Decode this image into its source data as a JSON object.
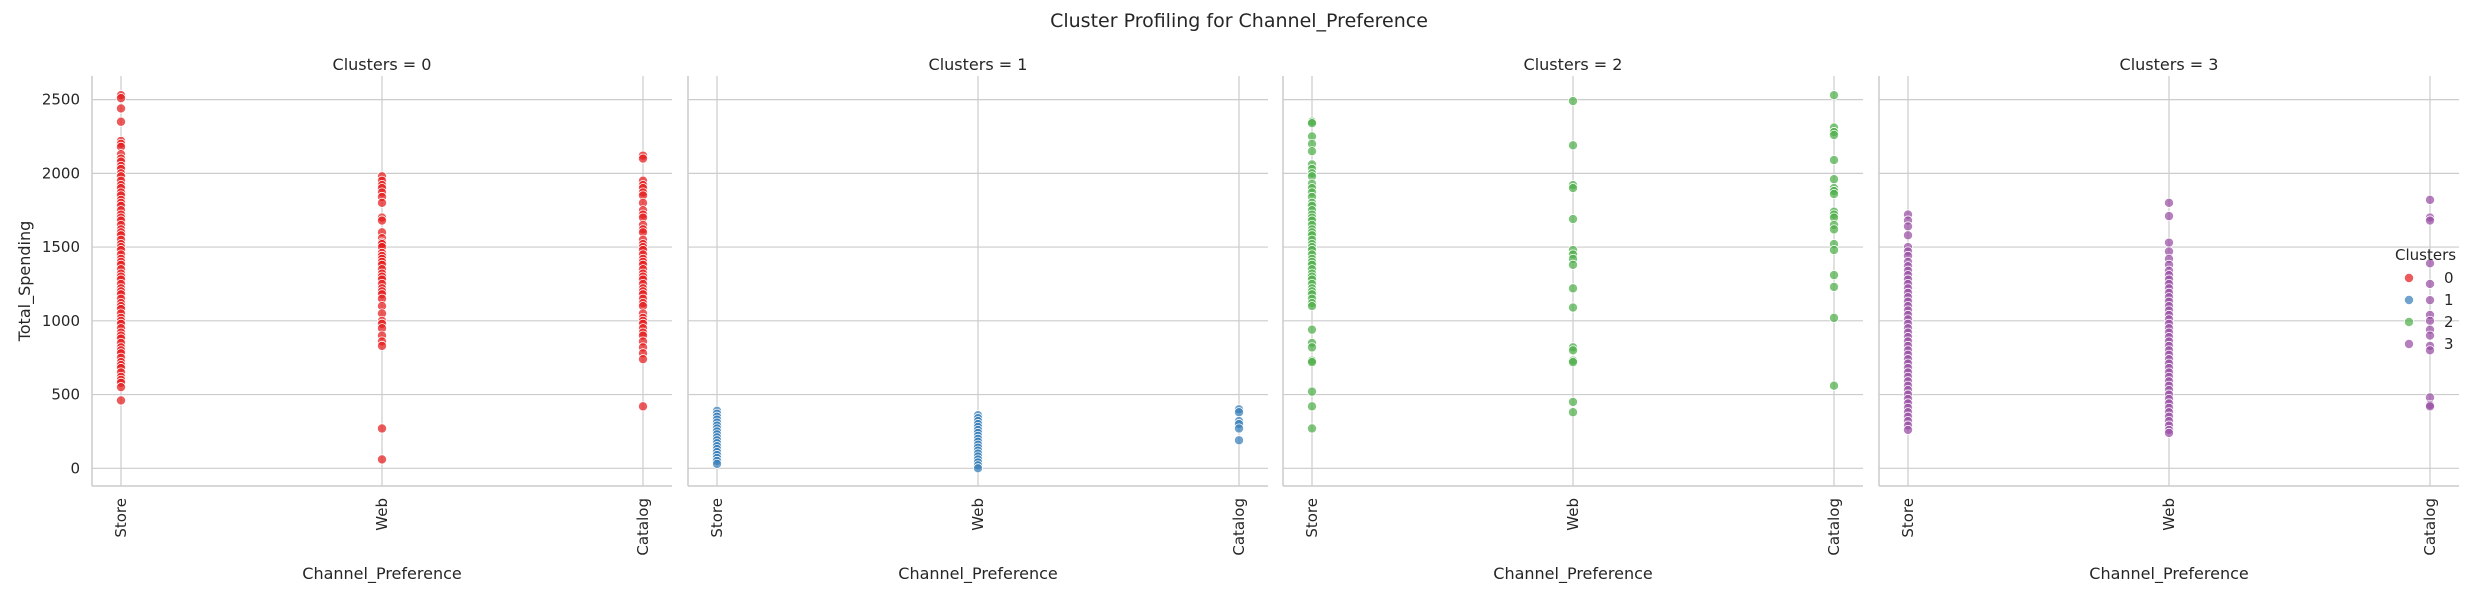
{
  "figure": {
    "title": "Cluster Profiling for Channel_Preference"
  },
  "legend": {
    "title": "Clusters",
    "placement": "right"
  },
  "colors": {
    "0": "#e41a1c",
    "1": "#377eb8",
    "2": "#4daf4a",
    "3": "#984ea3",
    "grid": "#cccccc",
    "spine": "#cccccc",
    "text": "#262626"
  },
  "chart_data": [
    {
      "type": "scatter",
      "title": "Clusters = 0",
      "cluster": "0",
      "xlabel": "Channel_Preference",
      "ylabel": "Total_Spending",
      "categories": [
        "Store",
        "Web",
        "Catalog"
      ],
      "ylim": [
        -120,
        2660
      ],
      "yticks": [
        0,
        500,
        1000,
        1500,
        2000,
        2500
      ],
      "grid": true,
      "points": {
        "Store": [
          2530,
          2510,
          2440,
          2350,
          2220,
          2200,
          2180,
          2130,
          2100,
          2080,
          2050,
          2030,
          2000,
          1980,
          1950,
          1920,
          1900,
          1870,
          1850,
          1820,
          1800,
          1780,
          1750,
          1720,
          1700,
          1680,
          1650,
          1620,
          1600,
          1580,
          1550,
          1520,
          1500,
          1480,
          1450,
          1420,
          1400,
          1380,
          1350,
          1320,
          1300,
          1280,
          1250,
          1220,
          1200,
          1180,
          1150,
          1120,
          1100,
          1080,
          1050,
          1020,
          1000,
          980,
          950,
          920,
          900,
          880,
          850,
          820,
          800,
          780,
          750,
          720,
          700,
          680,
          650,
          620,
          600,
          580,
          550,
          460
        ],
        "Web": [
          1980,
          1950,
          1920,
          1900,
          1870,
          1840,
          1800,
          1700,
          1680,
          1600,
          1560,
          1530,
          1520,
          1500,
          1460,
          1440,
          1420,
          1400,
          1380,
          1350,
          1320,
          1300,
          1280,
          1250,
          1220,
          1200,
          1180,
          1150,
          1100,
          1050,
          1000,
          980,
          950,
          900,
          860,
          830,
          270,
          60
        ],
        "Catalog": [
          2120,
          2100,
          1950,
          1920,
          1900,
          1870,
          1850,
          1800,
          1750,
          1720,
          1700,
          1650,
          1620,
          1600,
          1550,
          1520,
          1500,
          1480,
          1450,
          1420,
          1400,
          1380,
          1350,
          1320,
          1300,
          1280,
          1250,
          1220,
          1200,
          1180,
          1150,
          1120,
          1100,
          1050,
          1020,
          1000,
          980,
          950,
          920,
          900,
          860,
          820,
          780,
          740,
          420
        ]
      }
    },
    {
      "type": "scatter",
      "title": "Clusters = 1",
      "cluster": "1",
      "xlabel": "Channel_Preference",
      "ylabel": "",
      "categories": [
        "Store",
        "Web",
        "Catalog"
      ],
      "ylim": [
        -120,
        2660
      ],
      "yticks": [
        0,
        500,
        1000,
        1500,
        2000,
        2500
      ],
      "grid": true,
      "points": {
        "Store": [
          390,
          370,
          350,
          330,
          310,
          290,
          270,
          250,
          230,
          210,
          190,
          170,
          150,
          130,
          110,
          90,
          70,
          50,
          30
        ],
        "Web": [
          360,
          340,
          320,
          300,
          280,
          260,
          240,
          220,
          200,
          180,
          160,
          140,
          120,
          100,
          80,
          60,
          40,
          20,
          0
        ],
        "Catalog": [
          400,
          380,
          320,
          300,
          270,
          190
        ]
      }
    },
    {
      "type": "scatter",
      "title": "Clusters = 2",
      "cluster": "2",
      "xlabel": "Channel_Preference",
      "ylabel": "",
      "categories": [
        "Store",
        "Web",
        "Catalog"
      ],
      "ylim": [
        -120,
        2660
      ],
      "yticks": [
        0,
        500,
        1000,
        1500,
        2000,
        2500
      ],
      "grid": true,
      "points": {
        "Store": [
          2350,
          2340,
          2250,
          2200,
          2150,
          2060,
          2030,
          2000,
          1980,
          1930,
          1900,
          1870,
          1840,
          1800,
          1780,
          1750,
          1720,
          1700,
          1680,
          1650,
          1620,
          1600,
          1580,
          1550,
          1520,
          1500,
          1480,
          1450,
          1420,
          1400,
          1380,
          1350,
          1320,
          1300,
          1280,
          1250,
          1220,
          1200,
          1180,
          1150,
          1120,
          1100,
          940,
          850,
          820,
          730,
          720,
          520,
          420,
          270
        ],
        "Web": [
          2490,
          2190,
          1920,
          1900,
          1690,
          1480,
          1450,
          1420,
          1380,
          1220,
          1090,
          820,
          800,
          730,
          720,
          450,
          380
        ],
        "Catalog": [
          2530,
          2310,
          2280,
          2260,
          2090,
          1960,
          1900,
          1880,
          1860,
          1740,
          1720,
          1700,
          1650,
          1620,
          1520,
          1480,
          1310,
          1230,
          1020,
          560
        ]
      }
    },
    {
      "type": "scatter",
      "title": "Clusters = 3",
      "cluster": "3",
      "xlabel": "Channel_Preference",
      "ylabel": "",
      "categories": [
        "Store",
        "Web",
        "Catalog"
      ],
      "ylim": [
        -120,
        2660
      ],
      "yticks": [
        0,
        500,
        1000,
        1500,
        2000,
        2500
      ],
      "grid": true,
      "points": {
        "Store": [
          1720,
          1680,
          1640,
          1580,
          1500,
          1470,
          1440,
          1400,
          1370,
          1340,
          1310,
          1280,
          1250,
          1220,
          1190,
          1160,
          1130,
          1100,
          1070,
          1040,
          1010,
          980,
          950,
          920,
          890,
          860,
          830,
          800,
          770,
          740,
          710,
          680,
          650,
          620,
          590,
          560,
          530,
          500,
          470,
          440,
          410,
          380,
          350,
          320,
          290,
          260
        ],
        "Web": [
          1800,
          1710,
          1530,
          1470,
          1420,
          1380,
          1340,
          1310,
          1280,
          1250,
          1220,
          1190,
          1160,
          1130,
          1100,
          1070,
          1040,
          1010,
          980,
          950,
          920,
          890,
          860,
          830,
          800,
          770,
          740,
          710,
          680,
          650,
          620,
          590,
          560,
          530,
          500,
          470,
          440,
          410,
          380,
          350,
          320,
          290,
          260,
          240
        ],
        "Catalog": [
          1820,
          1700,
          1680,
          1390,
          1250,
          1140,
          1040,
          1000,
          940,
          900,
          830,
          800,
          480,
          430,
          420
        ]
      }
    }
  ]
}
